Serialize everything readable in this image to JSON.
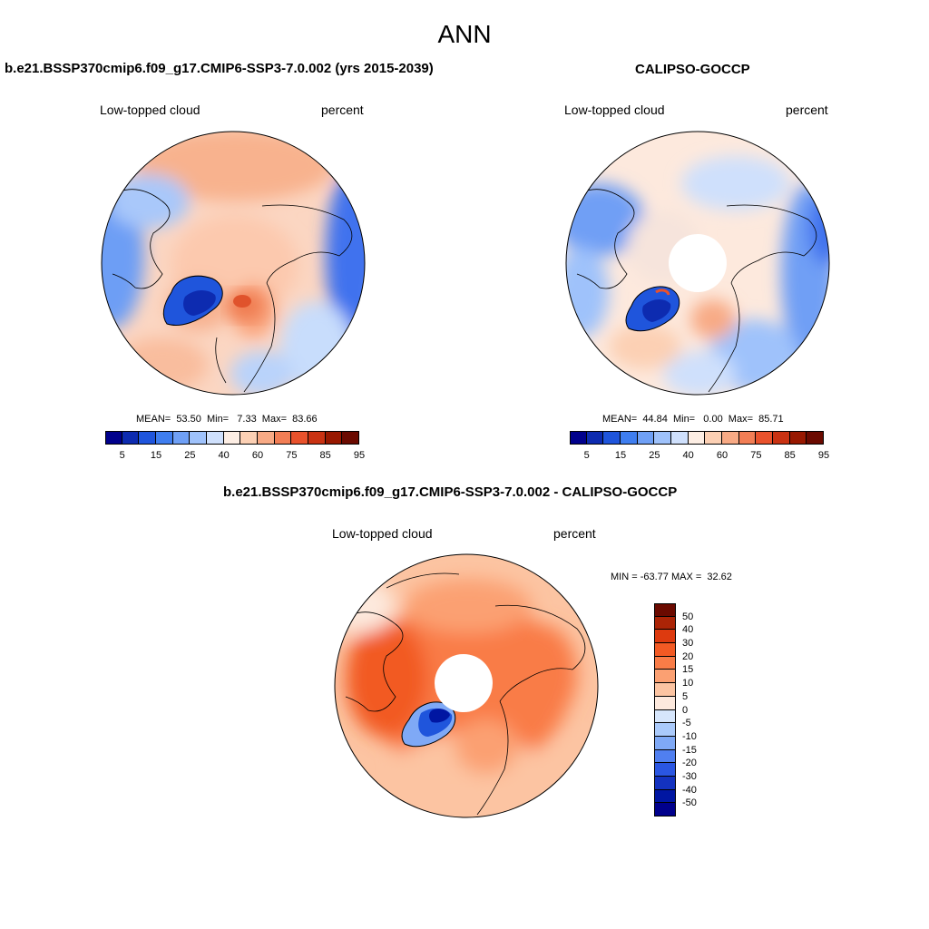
{
  "title": "ANN",
  "panels": [
    {
      "title": "b.e21.BSSP370cmip6.f09_g17.CMIP6-SSP3-7.0.002 (yrs 2015-2039)",
      "left_label": "Low-topped cloud",
      "right_label": "percent",
      "stats": "MEAN=  53.50  Min=   7.33  Max=  83.66"
    },
    {
      "title": "CALIPSO-GOCCP",
      "left_label": "Low-topped cloud",
      "right_label": "percent",
      "stats": "MEAN=  44.84  Min=   0.00  Max=  85.71"
    },
    {
      "title": "b.e21.BSSP370cmip6.f09_g17.CMIP6-SSP3-7.0.002 - CALIPSO-GOCCP",
      "left_label": "Low-topped cloud",
      "right_label": "percent",
      "stats": "MIN = -63.77 MAX =  32.62"
    }
  ],
  "colorbar_abs": {
    "colors": [
      "#00008c",
      "#0d2bb0",
      "#1f55dc",
      "#3f7ef0",
      "#6fa0f6",
      "#9fc2fb",
      "#cfe0fc",
      "#fdeee4",
      "#fcd0b4",
      "#f8aa85",
      "#f27e55",
      "#e9522c",
      "#c93212",
      "#981800",
      "#6b0a00"
    ],
    "ticks": [
      "5",
      "15",
      "25",
      "40",
      "60",
      "75",
      "85",
      "95"
    ]
  },
  "colorbar_diff": {
    "colors": [
      "#6b0a00",
      "#ac2406",
      "#dd3a0f",
      "#f25a24",
      "#f97c47",
      "#fba072",
      "#fcc4a2",
      "#fde9dd",
      "#d6e6fc",
      "#aacafb",
      "#7fa9f6",
      "#507ff0",
      "#2a56e2",
      "#1332c0",
      "#0016a2",
      "#00008c"
    ],
    "ticks": [
      "50",
      "40",
      "30",
      "20",
      "15",
      "10",
      "5",
      "0",
      "-5",
      "-10",
      "-15",
      "-20",
      "-30",
      "-40",
      "-50"
    ]
  }
}
